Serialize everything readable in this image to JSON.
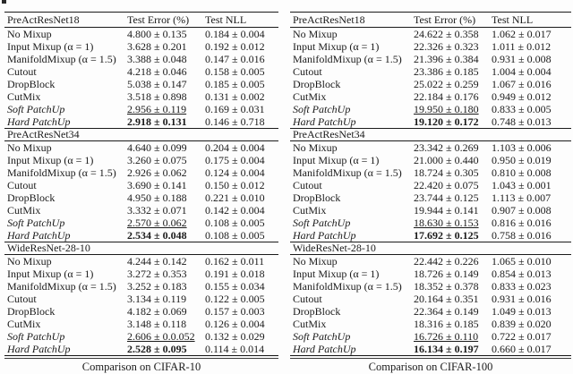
{
  "colors": {
    "text": "#1a1a1a",
    "rule": "#1a1a1a",
    "background": "#fdfdfd"
  },
  "tables": [
    {
      "caption": "Comparison on CIFAR-10",
      "columns": [
        "Test Error (%)",
        "Test NLL"
      ],
      "sections": [
        {
          "name": "PreActResNet18",
          "rows": [
            {
              "method": "No Mixup",
              "err": "4.800 ± 0.135",
              "nll": "0.184 ± 0.004"
            },
            {
              "method": "Input Mixup (α = 1)",
              "err": "3.628 ± 0.201",
              "nll": "0.192 ± 0.012"
            },
            {
              "method": "ManifoldMixup (α = 1.5)",
              "err": "3.388 ± 0.048",
              "nll": "0.147 ± 0.016"
            },
            {
              "method": "Cutout",
              "err": "4.218 ± 0.046",
              "nll": "0.158 ± 0.005"
            },
            {
              "method": "DropBlock",
              "err": "5.038 ± 0.147",
              "nll": "0.185 ± 0.005"
            },
            {
              "method": "CutMix",
              "err": "3.518 ± 0.898",
              "nll": "0.131 ± 0.002"
            },
            {
              "method": "Soft PatchUp",
              "italic": true,
              "err": "2.956 ± 0.119",
              "err_mark": "underline",
              "nll": "0.169 ± 0.031"
            },
            {
              "method": "Hard PatchUp",
              "italic": true,
              "err": "2.918 ± 0.131",
              "err_mark": "bold",
              "nll": "0.146 ± 0.718"
            }
          ]
        },
        {
          "name": "PreActResNet34",
          "rows": [
            {
              "method": "No Mixup",
              "err": "4.640 ± 0.099",
              "nll": "0.204 ± 0.004"
            },
            {
              "method": "Input Mixup (α = 1)",
              "err": "3.260 ± 0.075",
              "nll": "0.175 ± 0.004"
            },
            {
              "method": "ManifoldMixup (α = 1.5)",
              "err": "2.926 ± 0.062",
              "nll": "0.124 ± 0.004"
            },
            {
              "method": "Cutout",
              "err": "3.690 ± 0.141",
              "nll": "0.150 ± 0.012"
            },
            {
              "method": "DropBlock",
              "err": "4.950 ± 0.188",
              "nll": "0.221 ± 0.010"
            },
            {
              "method": "CutMix",
              "err": "3.332 ± 0.071",
              "nll": "0.142 ± 0.004"
            },
            {
              "method": "Soft PatchUp",
              "italic": true,
              "err": "2.570 ± 0.062",
              "err_mark": "underline",
              "nll": "0.108 ± 0.005"
            },
            {
              "method": "Hard PatchUp",
              "italic": true,
              "err": "2.534 ± 0.048",
              "err_mark": "bold",
              "nll": "0.108 ± 0.005"
            }
          ]
        },
        {
          "name": "WideResNet-28-10",
          "rows": [
            {
              "method": "No Mixup",
              "err": "4.244 ± 0.142",
              "nll": "0.162 ± 0.011"
            },
            {
              "method": "Input Mixup (α = 1)",
              "err": "3.272 ± 0.353",
              "nll": "0.191 ± 0.018"
            },
            {
              "method": "ManifoldMixup (α = 1.5)",
              "err": "3.252 ± 0.183",
              "nll": "0.155 ± 0.034"
            },
            {
              "method": "Cutout",
              "err": "3.134 ± 0.119",
              "nll": "0.122 ± 0.005"
            },
            {
              "method": "DropBlock",
              "err": "4.182 ± 0.069",
              "nll": "0.157 ± 0.003"
            },
            {
              "method": "CutMix",
              "err": "3.148 ± 0.118",
              "nll": "0.126 ± 0.004"
            },
            {
              "method": "Soft PatchUp",
              "italic": true,
              "err": "2.606 ± 0.0.052",
              "err_mark": "underline",
              "nll": "0.132 ± 0.029"
            },
            {
              "method": "Hard PatchUp",
              "italic": true,
              "err": "2.528 ± 0.095",
              "err_mark": "bold",
              "nll": "0.114 ± 0.014"
            }
          ]
        }
      ]
    },
    {
      "caption": "Comparison on CIFAR-100",
      "columns": [
        "Test Error (%)",
        "Test NLL"
      ],
      "sections": [
        {
          "name": "PreActResNet18",
          "rows": [
            {
              "method": "No Mixup",
              "err": "24.622 ± 0.358",
              "nll": "1.062 ± 0.017"
            },
            {
              "method": "Input Mixup (α = 1)",
              "err": "22.326 ± 0.323",
              "nll": "1.011 ± 0.012"
            },
            {
              "method": "ManifoldMixup (α = 1.5)",
              "err": "21.396 ± 0.384",
              "nll": "0.931 ± 0.008"
            },
            {
              "method": "Cutout",
              "err": "23.386 ± 0.185",
              "nll": "1.004 ± 0.004"
            },
            {
              "method": "DropBlock",
              "err": "25.022 ± 0.259",
              "nll": "1.067 ± 0.016"
            },
            {
              "method": "CutMix",
              "err": "22.184 ± 0.176",
              "nll": "0.949 ± 0.012"
            },
            {
              "method": "Soft PatchUp",
              "italic": true,
              "err": "19.950 ± 0.180",
              "err_mark": "underline",
              "nll": "0.833 ± 0.005"
            },
            {
              "method": "Hard PatchUp",
              "italic": true,
              "err": "19.120 ± 0.172",
              "err_mark": "bold",
              "nll": "0.748 ± 0.013"
            }
          ]
        },
        {
          "name": "PreActResNet34",
          "rows": [
            {
              "method": "No Mixup",
              "err": "23.342 ± 0.269",
              "nll": "1.103 ± 0.006"
            },
            {
              "method": "Input Mixup (α = 1)",
              "err": "21.000 ± 0.440",
              "nll": "0.950 ± 0.019"
            },
            {
              "method": "ManifoldMixup (α = 1.5)",
              "err": "18.724 ± 0.305",
              "nll": "0.810 ± 0.008"
            },
            {
              "method": "Cutout",
              "err": "22.420 ± 0.075",
              "nll": "1.043 ± 0.001"
            },
            {
              "method": "DropBlock",
              "err": "23.744 ± 0.125",
              "nll": "1.113 ± 0.007"
            },
            {
              "method": "CutMix",
              "err": "19.944 ± 0.141",
              "nll": "0.907 ± 0.008"
            },
            {
              "method": "Soft PatchUp",
              "italic": true,
              "err": "18.630 ± 0.153",
              "err_mark": "underline",
              "nll": "0.816 ± 0.016"
            },
            {
              "method": "Hard PatchUp",
              "italic": true,
              "err": "17.692 ± 0.125",
              "err_mark": "bold",
              "nll": "0.758 ± 0.016"
            }
          ]
        },
        {
          "name": "WideResNet-28-10",
          "rows": [
            {
              "method": "No Mixup",
              "err": "22.442 ± 0.226",
              "nll": "1.065 ± 0.010"
            },
            {
              "method": "Input Mixup (α = 1)",
              "err": "18.726 ± 0.149",
              "nll": "0.854 ± 0.013"
            },
            {
              "method": "ManifoldMixup (α = 1.5)",
              "err": "18.352 ± 0.378",
              "nll": "0.833 ± 0.023"
            },
            {
              "method": "Cutout",
              "err": "20.164 ± 0.351",
              "nll": "0.931 ± 0.016"
            },
            {
              "method": "DropBlock",
              "err": "22.364 ± 0.149",
              "nll": "1.049 ± 0.013"
            },
            {
              "method": "CutMix",
              "err": "18.316 ± 0.185",
              "nll": "0.839 ± 0.020"
            },
            {
              "method": "Soft PatchUp",
              "italic": true,
              "err": "16.726 ± 0.110",
              "err_mark": "underline",
              "nll": "0.722 ± 0.017"
            },
            {
              "method": "Hard PatchUp",
              "italic": true,
              "err": "16.134 ± 0.197",
              "err_mark": "bold",
              "nll": "0.660 ± 0.017"
            }
          ]
        }
      ]
    }
  ]
}
